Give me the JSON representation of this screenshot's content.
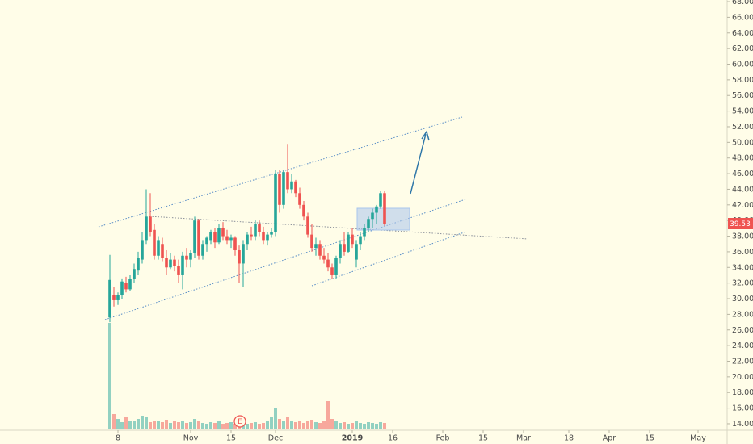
{
  "chart_data": {
    "type": "candlestick",
    "x": [
      -2,
      -1,
      0,
      1,
      2,
      3,
      4,
      5,
      6,
      7,
      8,
      9,
      10,
      11,
      12,
      13,
      14,
      15,
      16,
      17,
      18,
      19,
      20,
      21,
      22,
      23,
      24,
      25,
      26,
      27,
      28,
      29,
      30,
      31,
      32,
      33,
      34,
      35,
      36,
      37,
      38,
      39,
      40,
      41,
      42,
      43,
      44,
      45,
      46,
      47,
      48,
      49,
      50,
      51,
      52,
      53,
      54,
      55,
      56,
      57,
      58,
      59,
      60,
      61,
      62,
      63,
      64,
      65,
      66
    ],
    "open": [
      27.6,
      30.5,
      29.8,
      30.5,
      32.0,
      31.2,
      32.5,
      33.6,
      35.0,
      37.5,
      40.5,
      38.8,
      35.5,
      37.0,
      35.2,
      34.0,
      35.0,
      34.2,
      33.0,
      35.5,
      35.0,
      35.8,
      40.0,
      35.5,
      37.0,
      37.5,
      38.5,
      37.2,
      39.0,
      38.0,
      37.5,
      37.8,
      36.2,
      34.5,
      37.0,
      38.2,
      38.0,
      39.5,
      38.5,
      37.5,
      38.2,
      38.5,
      46.0,
      42.0,
      46.2,
      44.0,
      45.0,
      43.5,
      42.0,
      40.5,
      38.2,
      36.5,
      37.0,
      35.5,
      35.0,
      34.0,
      33.0,
      35.2,
      37.0,
      36.0,
      38.2,
      35.0,
      37.0,
      38.0,
      39.0,
      40.2,
      41.0,
      41.8,
      43.5
    ],
    "high": [
      35.6,
      31.5,
      30.8,
      32.6,
      32.8,
      33.0,
      34.5,
      36.0,
      38.5,
      44.0,
      43.5,
      39.5,
      38.0,
      37.8,
      36.2,
      35.8,
      35.5,
      35.0,
      36.0,
      36.5,
      36.2,
      40.5,
      40.2,
      37.5,
      38.0,
      38.8,
      39.0,
      39.5,
      39.8,
      38.8,
      38.2,
      38.0,
      36.8,
      37.5,
      38.5,
      39.2,
      40.0,
      40.0,
      39.2,
      38.5,
      39.0,
      46.5,
      46.5,
      46.5,
      49.8,
      46.0,
      45.2,
      44.2,
      42.5,
      41.0,
      39.5,
      37.8,
      37.5,
      36.5,
      35.8,
      34.5,
      35.5,
      37.5,
      38.5,
      38.5,
      39.0,
      37.5,
      38.5,
      39.5,
      40.5,
      41.5,
      42.0,
      43.8,
      43.8
    ],
    "low": [
      27.0,
      29.0,
      29.2,
      30.0,
      30.8,
      31.0,
      32.0,
      33.0,
      34.5,
      37.0,
      38.0,
      35.0,
      35.0,
      34.8,
      33.0,
      33.8,
      33.5,
      32.0,
      31.2,
      34.0,
      34.0,
      35.2,
      35.0,
      35.0,
      36.0,
      37.0,
      36.5,
      37.0,
      37.5,
      37.0,
      36.5,
      35.5,
      32.0,
      31.5,
      36.2,
      37.5,
      37.5,
      38.0,
      37.0,
      36.8,
      37.8,
      38.0,
      41.0,
      41.5,
      43.5,
      43.5,
      43.0,
      41.5,
      40.0,
      37.8,
      36.0,
      35.5,
      35.0,
      34.5,
      33.5,
      32.5,
      32.5,
      34.5,
      35.5,
      35.8,
      36.5,
      34.0,
      36.2,
      37.5,
      38.5,
      39.0,
      39.5,
      41.5,
      39.3
    ],
    "close": [
      32.4,
      29.8,
      30.5,
      32.2,
      31.2,
      32.5,
      33.8,
      35.2,
      37.5,
      40.5,
      38.5,
      35.5,
      37.5,
      35.2,
      34.0,
      35.0,
      34.2,
      33.0,
      35.5,
      35.0,
      35.8,
      40.0,
      35.5,
      37.0,
      37.8,
      38.5,
      37.2,
      39.0,
      38.0,
      37.5,
      37.8,
      36.2,
      34.5,
      37.0,
      38.2,
      38.0,
      39.5,
      38.5,
      37.5,
      38.2,
      38.5,
      46.0,
      42.0,
      46.2,
      44.0,
      45.0,
      43.5,
      42.0,
      40.5,
      38.2,
      36.5,
      37.0,
      35.5,
      35.0,
      34.0,
      33.0,
      35.2,
      37.0,
      36.0,
      38.2,
      37.0,
      37.0,
      38.0,
      39.0,
      40.2,
      41.0,
      41.8,
      43.5,
      39.53
    ],
    "volume": [
      131,
      18,
      12,
      8,
      14,
      9,
      10,
      12,
      16,
      14,
      8,
      10,
      9,
      8,
      11,
      7,
      9,
      8,
      10,
      7,
      8,
      12,
      10,
      7,
      6,
      8,
      7,
      9,
      6,
      7,
      8,
      6,
      14,
      10,
      6,
      7,
      8,
      6,
      7,
      9,
      15,
      25,
      12,
      10,
      14,
      9,
      8,
      10,
      7,
      9,
      11,
      8,
      7,
      9,
      34,
      12,
      9,
      7,
      8,
      6,
      7,
      9,
      7,
      6,
      8,
      7,
      6,
      8,
      7
    ],
    "up_color": "#26a69a",
    "down_color": "#ef5350",
    "xlim": [
      -29.2,
      150.8
    ],
    "xticks": [
      {
        "value": 0,
        "label": "8"
      },
      {
        "value": 18,
        "label": "Nov"
      },
      {
        "value": 28,
        "label": "15"
      },
      {
        "value": 39,
        "label": "Dec"
      },
      {
        "value": 58,
        "label": "2019"
      },
      {
        "value": 68,
        "label": "16"
      },
      {
        "value": 80.4,
        "label": "Feb"
      },
      {
        "value": 90.4,
        "label": "15"
      },
      {
        "value": 100.4,
        "label": "Mar"
      },
      {
        "value": 111.6,
        "label": "18"
      },
      {
        "value": 121.6,
        "label": "Apr"
      },
      {
        "value": 131.6,
        "label": "15"
      },
      {
        "value": 143.6,
        "label": "May"
      }
    ],
    "ylim": [
      13.17,
      68.21
    ],
    "yticks": [
      {
        "value": 68,
        "label": "68.00"
      },
      {
        "value": 66,
        "label": "66.00"
      },
      {
        "value": 64,
        "label": "64.00"
      },
      {
        "value": 62,
        "label": "62.00"
      },
      {
        "value": 60,
        "label": "60.00"
      },
      {
        "value": 58,
        "label": "58.00"
      },
      {
        "value": 56,
        "label": "56.00"
      },
      {
        "value": 54,
        "label": "54.00"
      },
      {
        "value": 52,
        "label": "52.00"
      },
      {
        "value": 50,
        "label": "50.00"
      },
      {
        "value": 48,
        "label": "48.00"
      },
      {
        "value": 46,
        "label": "46.00"
      },
      {
        "value": 44,
        "label": "44.00"
      },
      {
        "value": 42,
        "label": "42.00"
      },
      {
        "value": 40,
        "label": "40.00"
      },
      {
        "value": 38,
        "label": "38.00"
      },
      {
        "value": 36,
        "label": "36.00"
      },
      {
        "value": 34,
        "label": "34.00"
      },
      {
        "value": 32,
        "label": "32.00"
      },
      {
        "value": 30,
        "label": "30.00"
      },
      {
        "value": 28,
        "label": "28.00"
      },
      {
        "value": 26,
        "label": "26.00"
      },
      {
        "value": 24,
        "label": "24.00"
      },
      {
        "value": 22,
        "label": "22.00"
      },
      {
        "value": 20,
        "label": "20.00"
      },
      {
        "value": 18,
        "label": "18.00"
      },
      {
        "value": 16,
        "label": "16.00"
      },
      {
        "value": 14,
        "label": "14.00"
      }
    ],
    "last_price": 39.53,
    "earnings_marker": "E"
  }
}
